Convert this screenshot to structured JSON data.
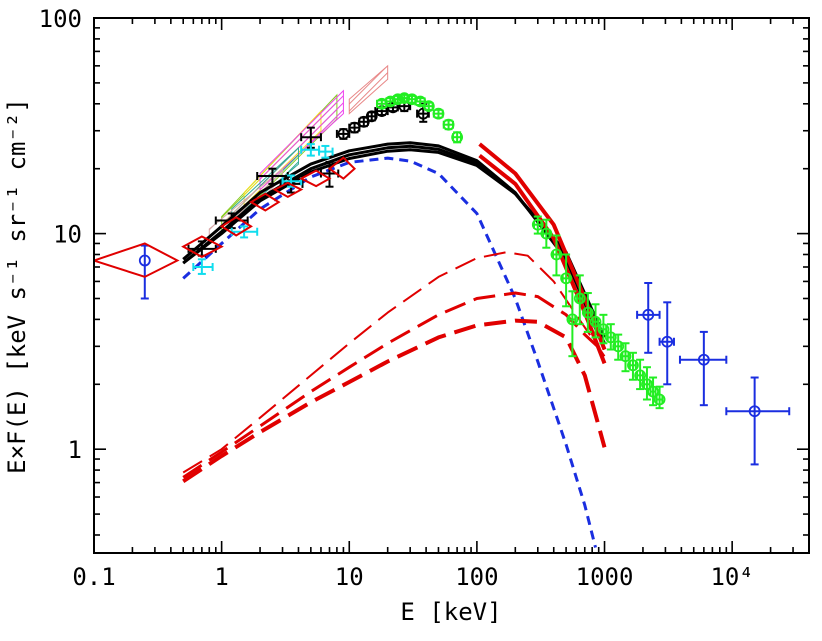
{
  "chart_data": {
    "type": "scatter",
    "title": "",
    "xlabel": "E [keV]",
    "ylabel": "E×F(E) [keV s⁻¹ sr⁻¹ cm⁻²]",
    "xscale": "log",
    "yscale": "log",
    "xlim": [
      0.1,
      40000
    ],
    "ylim": [
      0.33,
      100
    ],
    "x_ticks": [
      {
        "value": 0.1,
        "label": "0.1"
      },
      {
        "value": 1,
        "label": "1"
      },
      {
        "value": 10,
        "label": "10"
      },
      {
        "value": 100,
        "label": "100"
      },
      {
        "value": 1000,
        "label": "1000"
      },
      {
        "value": 10000,
        "label": "10⁴"
      }
    ],
    "y_ticks": [
      {
        "value": 1,
        "label": "1"
      },
      {
        "value": 10,
        "label": "10"
      },
      {
        "value": 100,
        "label": "100"
      }
    ],
    "grid": false,
    "colors": {
      "total_model": "#000000",
      "thermal_component": "#1a2ee0",
      "nonthermal_component": "#e00000",
      "x_ray_points": "#000000",
      "high_energy_points": "#22ee22",
      "cyan_points": "#11ddee",
      "mev_points": "#1a2ee0",
      "red_diamonds": "#e00000",
      "red_band": "#e00000",
      "hatched_pink": "#e88888"
    },
    "series": [
      {
        "kind": "line",
        "color": "#000000",
        "width": 3,
        "x": [
          0.5,
          1,
          2,
          5,
          10,
          20,
          30,
          50,
          100,
          200,
          500,
          1000
        ],
        "y": [
          7.6,
          10.8,
          15.5,
          21.0,
          24.2,
          26.0,
          26.4,
          25.5,
          21.8,
          15.5,
          7.6,
          2.9
        ]
      },
      {
        "kind": "line",
        "color": "#000000",
        "width": 3,
        "x": [
          0.5,
          1,
          2,
          5,
          10,
          20,
          30,
          50,
          100,
          200,
          500,
          1000
        ],
        "y": [
          7.3,
          10.2,
          14.6,
          20.0,
          23.2,
          25.0,
          25.4,
          24.6,
          21.2,
          15.3,
          7.9,
          3.1
        ]
      },
      {
        "kind": "line",
        "color": "#000000",
        "width": 3,
        "x": [
          0.5,
          1,
          2,
          5,
          10,
          20,
          30,
          50,
          100,
          200,
          500,
          1000
        ],
        "y": [
          7.3,
          10.0,
          14.2,
          19.3,
          22.3,
          24.1,
          24.5,
          23.8,
          20.7,
          15.3,
          8.2,
          3.3
        ]
      },
      {
        "kind": "line",
        "color": "#1a2ee0",
        "width": 3,
        "dash": "9,6",
        "x": [
          0.5,
          1,
          2,
          5,
          10,
          20,
          30,
          50,
          100,
          200,
          300,
          500,
          700,
          850
        ],
        "y": [
          6.2,
          9.0,
          13.0,
          18.3,
          21.4,
          22.4,
          21.7,
          19.0,
          12.4,
          5.0,
          2.55,
          1.05,
          0.55,
          0.35
        ]
      },
      {
        "kind": "line",
        "color": "#e00000",
        "width": 2,
        "dash": "22,9",
        "x": [
          0.5,
          1,
          2,
          5,
          10,
          20,
          50,
          100,
          170,
          250,
          400,
          600,
          1000
        ],
        "y": [
          0.78,
          1.0,
          1.4,
          2.2,
          3.1,
          4.3,
          6.3,
          7.7,
          8.2,
          7.9,
          6.0,
          4.2,
          2.7
        ]
      },
      {
        "kind": "line",
        "color": "#e00000",
        "width": 3,
        "dash": "22,9",
        "x": [
          0.5,
          1,
          2,
          5,
          10,
          20,
          50,
          100,
          200,
          300,
          500,
          700,
          1000
        ],
        "y": [
          0.74,
          0.97,
          1.28,
          1.85,
          2.4,
          3.1,
          4.2,
          5.0,
          5.3,
          5.1,
          4.2,
          3.4,
          2.8
        ]
      },
      {
        "kind": "line",
        "color": "#e00000",
        "width": 4,
        "dash": "22,9",
        "x": [
          0.5,
          1,
          2,
          5,
          10,
          20,
          50,
          100,
          200,
          300,
          500,
          700,
          1000
        ],
        "y": [
          0.71,
          0.93,
          1.2,
          1.65,
          2.05,
          2.55,
          3.3,
          3.75,
          3.95,
          3.9,
          3.3,
          2.2,
          1.02
        ]
      },
      {
        "kind": "line",
        "color": "#e00000",
        "width": 4,
        "x": [
          105,
          200,
          400,
          700,
          1000
        ],
        "y": [
          26,
          19.0,
          11.0,
          5.0,
          2.9
        ]
      },
      {
        "kind": "line",
        "color": "#e00000",
        "width": 4,
        "x": [
          105,
          200,
          400,
          700,
          1000
        ],
        "y": [
          23,
          17.0,
          9.5,
          4.3,
          2.5
        ]
      },
      {
        "kind": "errorbars",
        "color": "#000000",
        "marker": "none",
        "points": [
          {
            "x": 0.7,
            "y": 8.5,
            "xlo": 0.55,
            "xhi": 0.9,
            "ylo": 7.9,
            "yhi": 9.2
          },
          {
            "x": 1.2,
            "y": 11.5,
            "xlo": 0.9,
            "xhi": 1.6,
            "ylo": 10.6,
            "yhi": 12.4
          },
          {
            "x": 2.5,
            "y": 18.5,
            "xlo": 1.9,
            "xhi": 3.3,
            "ylo": 17.0,
            "yhi": 20.0
          },
          {
            "x": 3.5,
            "y": 17.0,
            "xlo": 2.9,
            "xhi": 4.3,
            "ylo": 15.5,
            "yhi": 18.6
          },
          {
            "x": 5.0,
            "y": 28.0,
            "xlo": 4.2,
            "xhi": 6.0,
            "ylo": 25.0,
            "yhi": 31.0
          },
          {
            "x": 7.0,
            "y": 19.0,
            "xlo": 6.0,
            "xhi": 8.2,
            "ylo": 16.5,
            "yhi": 21.5
          }
        ]
      },
      {
        "kind": "errorbars",
        "color": "#000000",
        "marker": "circle",
        "points": [
          {
            "x": 9,
            "y": 29,
            "xlo": 8,
            "xhi": 10,
            "ylo": 27.5,
            "yhi": 30.5
          },
          {
            "x": 11,
            "y": 31,
            "xlo": 10,
            "xhi": 12,
            "ylo": 29.5,
            "yhi": 32.5
          },
          {
            "x": 13,
            "y": 33,
            "xlo": 12,
            "xhi": 14,
            "ylo": 31.5,
            "yhi": 34.5
          },
          {
            "x": 15,
            "y": 35,
            "xlo": 14,
            "xhi": 16,
            "ylo": 33.5,
            "yhi": 36.5
          },
          {
            "x": 18,
            "y": 37,
            "xlo": 16,
            "xhi": 20,
            "ylo": 35.5,
            "yhi": 38.5
          },
          {
            "x": 22,
            "y": 38.5,
            "xlo": 20,
            "xhi": 24,
            "ylo": 37,
            "yhi": 40
          },
          {
            "x": 27,
            "y": 39,
            "xlo": 24,
            "xhi": 30,
            "ylo": 37,
            "yhi": 41
          },
          {
            "x": 38,
            "y": 36,
            "xlo": 34,
            "xhi": 42,
            "ylo": 33,
            "yhi": 40
          }
        ]
      },
      {
        "kind": "errorbars",
        "color": "#11ddee",
        "marker": "none",
        "points": [
          {
            "x": 0.7,
            "y": 7.0,
            "xlo": 0.6,
            "xhi": 0.85,
            "ylo": 6.5,
            "yhi": 7.6
          },
          {
            "x": 1.5,
            "y": 10.2,
            "xlo": 1.2,
            "xhi": 1.9,
            "ylo": 9.6,
            "yhi": 10.8
          },
          {
            "x": 3.5,
            "y": 17.5,
            "xlo": 3.0,
            "xhi": 4.2,
            "ylo": 16.5,
            "yhi": 18.6
          },
          {
            "x": 5.0,
            "y": 24.5,
            "xlo": 4.2,
            "xhi": 5.8,
            "ylo": 23.0,
            "yhi": 26.0
          },
          {
            "x": 6.5,
            "y": 24.0,
            "xlo": 5.8,
            "xhi": 7.4,
            "ylo": 22.5,
            "yhi": 25.5
          }
        ]
      },
      {
        "kind": "errorbars",
        "color": "#22ee22",
        "marker": "circle",
        "points": [
          {
            "x": 18,
            "y": 40,
            "xlo": 16.5,
            "xhi": 19.5,
            "ylo": 38.5,
            "yhi": 41.5
          },
          {
            "x": 21,
            "y": 41,
            "xlo": 19.5,
            "xhi": 22.5,
            "ylo": 39.5,
            "yhi": 42.5
          },
          {
            "x": 24,
            "y": 42,
            "xlo": 22.5,
            "xhi": 25.5,
            "ylo": 40.5,
            "yhi": 43.5
          },
          {
            "x": 27,
            "y": 42.5,
            "xlo": 25.5,
            "xhi": 28.5,
            "ylo": 41,
            "yhi": 44
          },
          {
            "x": 31,
            "y": 42,
            "xlo": 29,
            "xhi": 33,
            "ylo": 40.5,
            "yhi": 43.5
          },
          {
            "x": 36,
            "y": 41,
            "xlo": 33,
            "xhi": 39,
            "ylo": 39.5,
            "yhi": 42.5
          },
          {
            "x": 42,
            "y": 39,
            "xlo": 39,
            "xhi": 45,
            "ylo": 37.5,
            "yhi": 40.5
          },
          {
            "x": 50,
            "y": 36,
            "xlo": 46,
            "xhi": 54,
            "ylo": 34.5,
            "yhi": 37.5
          },
          {
            "x": 60,
            "y": 32,
            "xlo": 55,
            "xhi": 65,
            "ylo": 30.5,
            "yhi": 33.5
          },
          {
            "x": 70,
            "y": 28,
            "xlo": 65,
            "xhi": 75,
            "ylo": 26.5,
            "yhi": 29.5
          },
          {
            "x": 300,
            "y": 11.0,
            "xlo": 280,
            "xhi": 320,
            "ylo": 10.0,
            "yhi": 12.0
          },
          {
            "x": 350,
            "y": 10.0,
            "xlo": 330,
            "xhi": 370,
            "ylo": 8.6,
            "yhi": 11.6
          },
          {
            "x": 420,
            "y": 8.0,
            "xlo": 395,
            "xhi": 445,
            "ylo": 6.4,
            "yhi": 9.8
          },
          {
            "x": 500,
            "y": 6.2,
            "xlo": 470,
            "xhi": 530,
            "ylo": 4.6,
            "yhi": 8.0
          },
          {
            "x": 560,
            "y": 4.0,
            "xlo": 530,
            "xhi": 590,
            "ylo": 2.7,
            "yhi": 5.4
          },
          {
            "x": 640,
            "y": 5.0,
            "xlo": 610,
            "xhi": 670,
            "ylo": 3.8,
            "yhi": 6.4
          },
          {
            "x": 740,
            "y": 4.3,
            "xlo": 700,
            "xhi": 780,
            "ylo": 3.5,
            "yhi": 5.3
          },
          {
            "x": 850,
            "y": 3.9,
            "xlo": 810,
            "xhi": 890,
            "ylo": 3.3,
            "yhi": 4.7
          },
          {
            "x": 980,
            "y": 3.6,
            "xlo": 930,
            "xhi": 1030,
            "ylo": 3.1,
            "yhi": 4.2
          },
          {
            "x": 1120,
            "y": 3.3,
            "xlo": 1060,
            "xhi": 1180,
            "ylo": 2.9,
            "yhi": 3.8
          },
          {
            "x": 1280,
            "y": 3.0,
            "xlo": 1210,
            "xhi": 1350,
            "ylo": 2.6,
            "yhi": 3.4
          },
          {
            "x": 1460,
            "y": 2.7,
            "xlo": 1380,
            "xhi": 1540,
            "ylo": 2.3,
            "yhi": 3.1
          },
          {
            "x": 1670,
            "y": 2.45,
            "xlo": 1580,
            "xhi": 1760,
            "ylo": 2.1,
            "yhi": 2.8
          },
          {
            "x": 1900,
            "y": 2.2,
            "xlo": 1800,
            "xhi": 2000,
            "ylo": 1.9,
            "yhi": 2.6
          },
          {
            "x": 2150,
            "y": 2.0,
            "xlo": 2040,
            "xhi": 2260,
            "ylo": 1.7,
            "yhi": 2.4
          },
          {
            "x": 2400,
            "y": 1.85,
            "xlo": 2290,
            "xhi": 2510,
            "ylo": 1.6,
            "yhi": 2.15
          },
          {
            "x": 2700,
            "y": 1.7,
            "xlo": 2560,
            "xhi": 2840,
            "ylo": 1.55,
            "yhi": 1.95
          }
        ]
      },
      {
        "kind": "errorbars",
        "color": "#1a2ee0",
        "marker": "circle",
        "points": [
          {
            "x": 0.25,
            "y": 7.5,
            "xlo": 0.25,
            "xhi": 0.25,
            "ylo": 5.0,
            "yhi": 8.8
          },
          {
            "x": 2200,
            "y": 4.2,
            "xlo": 1800,
            "xhi": 2700,
            "ylo": 2.8,
            "yhi": 5.9
          },
          {
            "x": 3100,
            "y": 3.15,
            "xlo": 2700,
            "xhi": 3500,
            "ylo": 2.0,
            "yhi": 4.8
          },
          {
            "x": 6000,
            "y": 2.6,
            "xlo": 3900,
            "xhi": 9000,
            "ylo": 1.6,
            "yhi": 3.5
          },
          {
            "x": 15000,
            "y": 1.5,
            "xlo": 9000,
            "xhi": 28000,
            "ylo": 0.85,
            "yhi": 2.15
          }
        ]
      },
      {
        "kind": "diamonds",
        "color": "#e00000",
        "points": [
          {
            "x": 0.25,
            "y": 7.5,
            "xlo": 0.1,
            "xhi": 0.45,
            "ylo": 6.3,
            "yhi": 9.0
          },
          {
            "x": 0.7,
            "y": 8.7,
            "xlo": 0.5,
            "xhi": 1.0,
            "ylo": 7.8,
            "yhi": 9.7
          },
          {
            "x": 1.3,
            "y": 10.8,
            "xlo": 1.0,
            "xhi": 1.7,
            "ylo": 9.8,
            "yhi": 11.9
          },
          {
            "x": 2.2,
            "y": 14.0,
            "xlo": 1.7,
            "xhi": 2.8,
            "ylo": 12.8,
            "yhi": 15.3
          },
          {
            "x": 3.3,
            "y": 16.0,
            "xlo": 2.6,
            "xhi": 4.2,
            "ylo": 14.8,
            "yhi": 17.2
          },
          {
            "x": 5.5,
            "y": 18.0,
            "xlo": 4.2,
            "xhi": 7.0,
            "ylo": 16.6,
            "yhi": 19.6
          },
          {
            "x": 9.0,
            "y": 20.0,
            "xlo": 7.0,
            "xhi": 11.0,
            "ylo": 18.0,
            "yhi": 22.5
          }
        ]
      },
      {
        "kind": "bands",
        "name": "",
        "items": [
          {
            "color": "#88cc22",
            "x": [
              1.0,
              8.0
            ],
            "y_lo": [
              10.0,
              34.0
            ],
            "y_hi": [
              12.0,
              44.0
            ]
          },
          {
            "color": "#f4e020",
            "x": [
              1.5,
              6.0
            ],
            "y_lo": [
              13.5,
              30.0
            ],
            "y_hi": [
              15.5,
              37.0
            ]
          },
          {
            "color": "#ee44ee",
            "x": [
              2.0,
              9.0
            ],
            "y_lo": [
              16.0,
              36.0
            ],
            "y_hi": [
              19.0,
              46.0
            ]
          },
          {
            "color": "#33aa99",
            "x": [
              1.2,
              4.0
            ],
            "y_lo": [
              11.5,
              21.0
            ],
            "y_hi": [
              13.0,
              25.0
            ]
          },
          {
            "color": "#d8a8a8",
            "x": [
              0.8,
              3.0
            ],
            "y_lo": [
              9.0,
              17.0
            ],
            "y_hi": [
              10.5,
              20.0
            ]
          },
          {
            "color": "#e88888",
            "x": [
              10.0,
              20.0
            ],
            "y_lo": [
              36.0,
              52.0
            ],
            "y_hi": [
              42.0,
              60.0
            ]
          }
        ]
      }
    ]
  }
}
